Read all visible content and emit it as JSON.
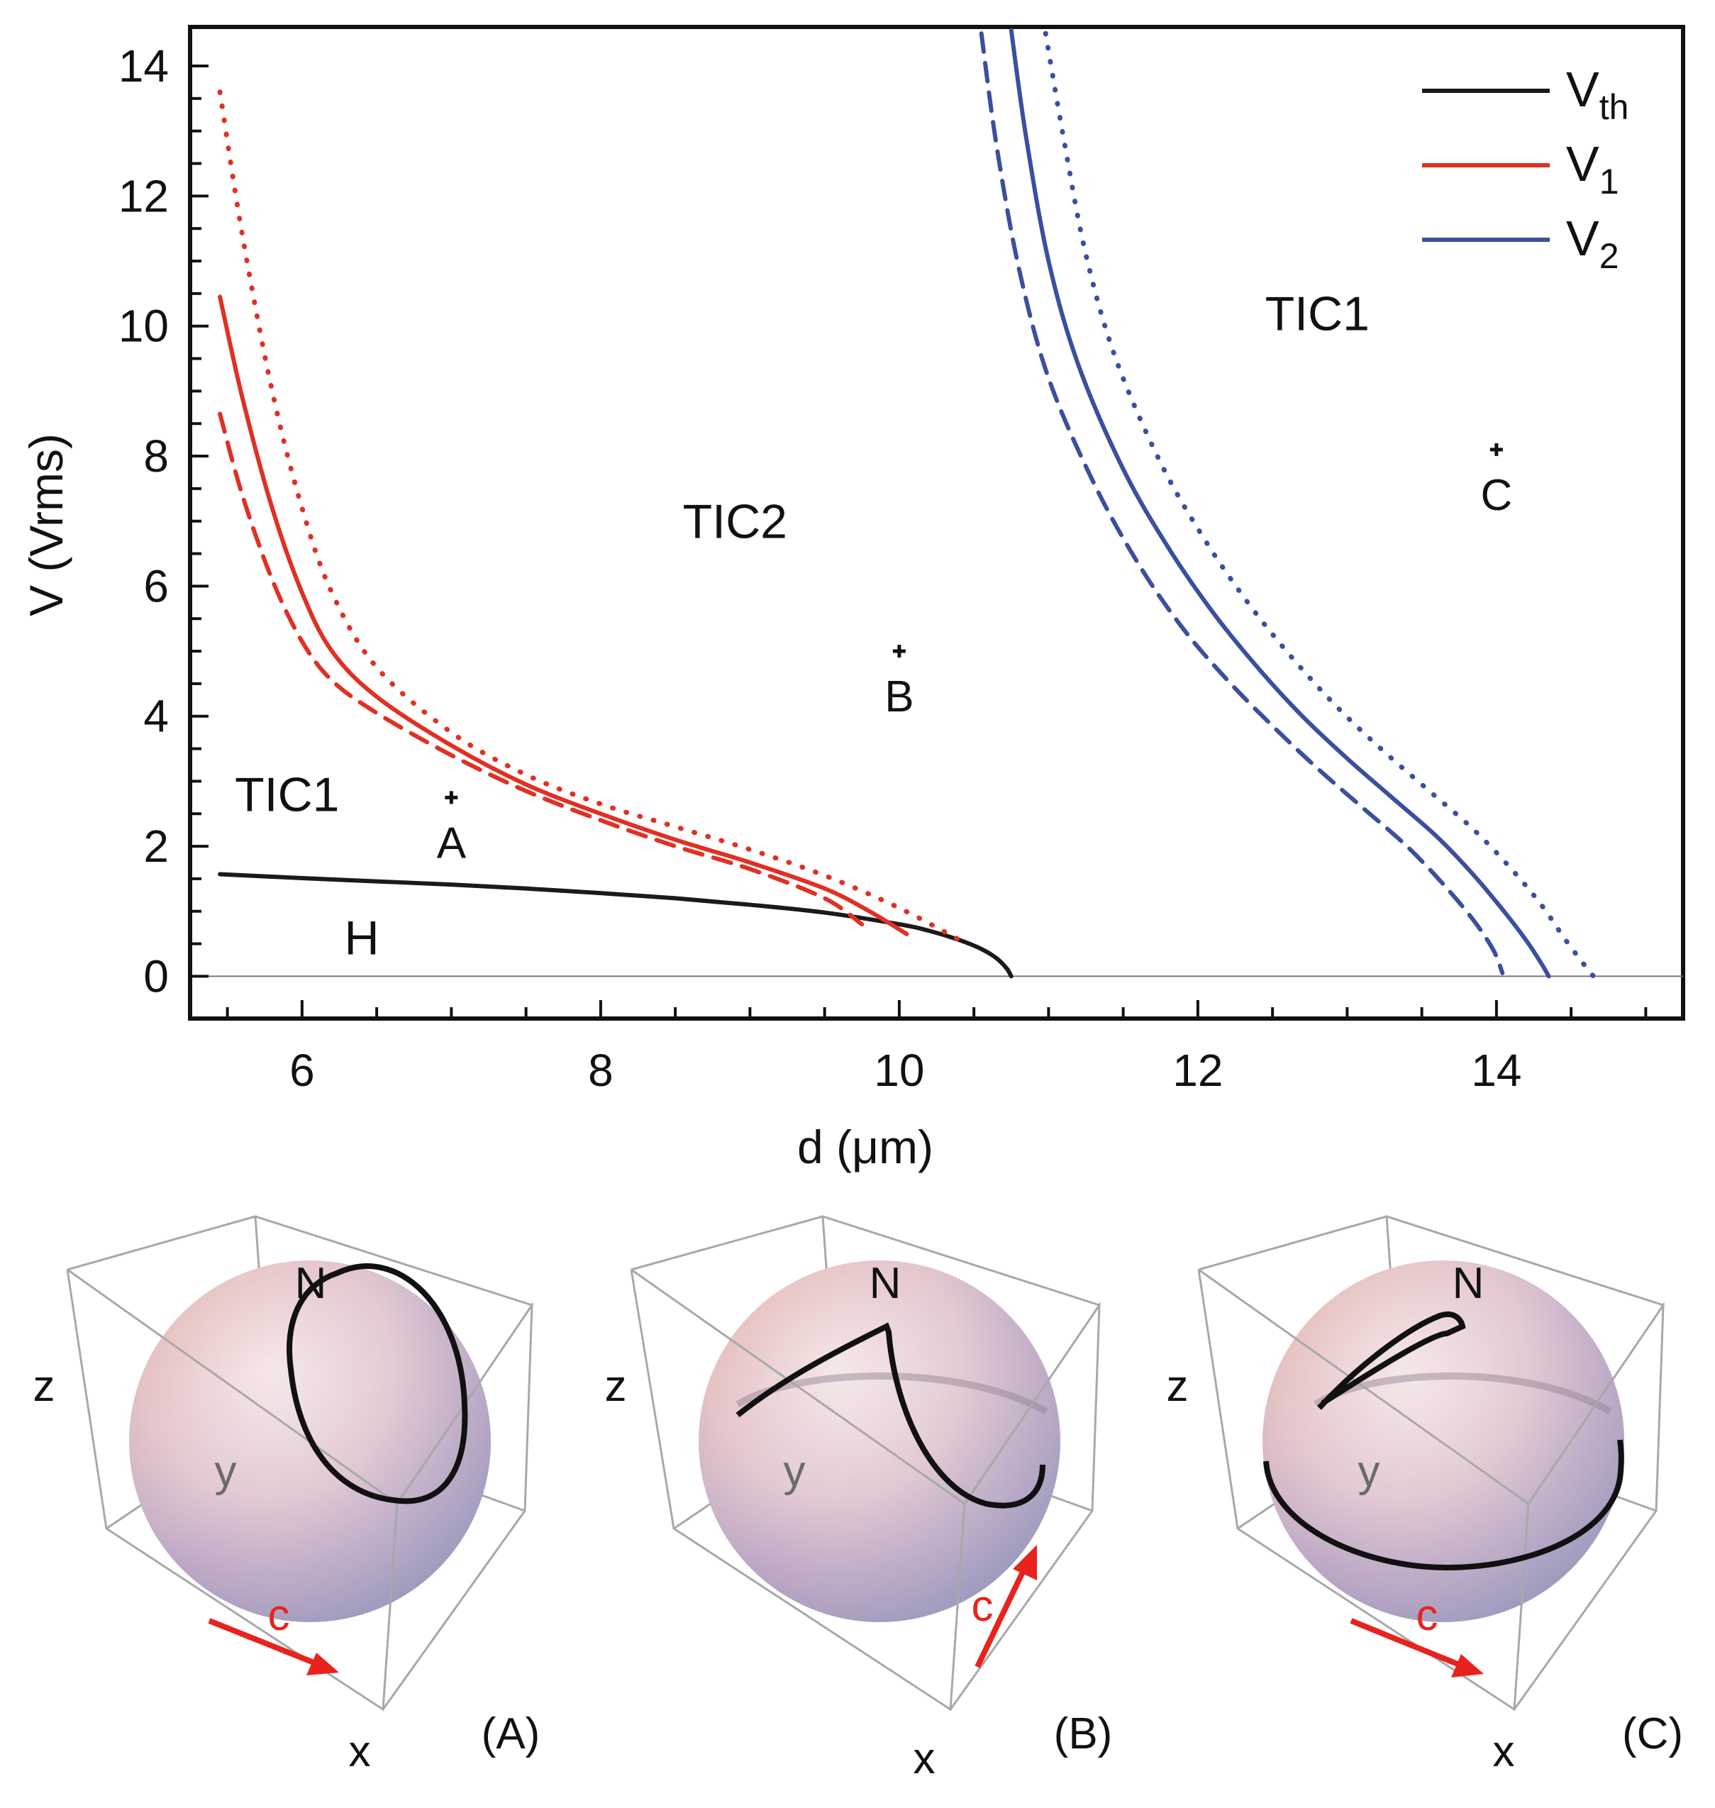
{
  "chart_data": [
    {
      "type": "line",
      "xlabel": "d (μm)",
      "ylabel": "V (Vrms)",
      "xlim": [
        5.25,
        15.25
      ],
      "ylim": [
        -0.65,
        14.6
      ],
      "xticks": [
        6,
        8,
        10,
        12,
        14
      ],
      "xtick_labels": [
        "6",
        "8",
        "10",
        "12",
        "14"
      ],
      "yticks": [
        0,
        2,
        4,
        6,
        8,
        10,
        12,
        14
      ],
      "ytick_labels": [
        "0",
        "2",
        "4",
        "6",
        "8",
        "10",
        "12",
        "14"
      ],
      "grid": false,
      "legend": {
        "position": "top-right",
        "entries": [
          {
            "main": "V",
            "sub": "th",
            "color": "#1a1a1a"
          },
          {
            "main": "V",
            "sub": "1",
            "color": "#e03024"
          },
          {
            "main": "V",
            "sub": "2",
            "color": "#3a4f9e"
          }
        ]
      },
      "series": [
        {
          "name": "Vth",
          "color": "#1a1a1a",
          "style": "solid",
          "x": [
            5.45,
            6,
            6.5,
            7,
            7.5,
            8,
            8.5,
            9,
            9.5,
            10,
            10.2,
            10.4,
            10.55,
            10.65,
            10.72,
            10.75
          ],
          "y": [
            1.57,
            1.51,
            1.46,
            1.41,
            1.35,
            1.28,
            1.2,
            1.1,
            0.98,
            0.8,
            0.7,
            0.56,
            0.42,
            0.28,
            0.12,
            0.0
          ]
        },
        {
          "name": "V1 (solid)",
          "color": "#e03024",
          "style": "solid",
          "x": [
            5.45,
            5.6,
            5.8,
            6.0,
            6.2,
            6.5,
            7.0,
            7.5,
            8.0,
            8.5,
            9.0,
            9.5,
            9.8,
            10.05
          ],
          "y": [
            10.45,
            8.9,
            7.2,
            5.9,
            5.0,
            4.3,
            3.55,
            2.95,
            2.5,
            2.1,
            1.75,
            1.35,
            1.0,
            0.65
          ]
        },
        {
          "name": "V1 (dashed)",
          "color": "#e03024",
          "style": "dashed",
          "x": [
            5.45,
            5.6,
            5.8,
            6.0,
            6.2,
            6.5,
            7.0,
            7.5,
            8.0,
            8.5,
            9.0,
            9.5,
            9.75
          ],
          "y": [
            8.65,
            7.4,
            6.1,
            5.15,
            4.55,
            4.05,
            3.4,
            2.85,
            2.4,
            2.0,
            1.65,
            1.2,
            0.8
          ]
        },
        {
          "name": "V1 (dotted)",
          "color": "#e03024",
          "style": "dotted",
          "x": [
            5.45,
            5.6,
            5.8,
            6.0,
            6.2,
            6.5,
            7.0,
            7.5,
            8.0,
            8.5,
            9.0,
            9.5,
            10.0,
            10.45
          ],
          "y": [
            13.6,
            11.4,
            9.0,
            7.2,
            5.9,
            4.75,
            3.75,
            3.1,
            2.65,
            2.3,
            1.95,
            1.55,
            1.05,
            0.5
          ]
        },
        {
          "name": "V2 (solid)",
          "color": "#3a4f9e",
          "style": "solid",
          "x": [
            10.75,
            10.85,
            11.0,
            11.2,
            11.5,
            11.8,
            12.1,
            12.4,
            12.7,
            13.0,
            13.3,
            13.6,
            13.85,
            14.05,
            14.2,
            14.3,
            14.35
          ],
          "y": [
            14.55,
            12.9,
            11.0,
            9.4,
            7.8,
            6.6,
            5.6,
            4.75,
            4.0,
            3.35,
            2.75,
            2.15,
            1.55,
            1.0,
            0.55,
            0.2,
            0.0
          ]
        },
        {
          "name": "V2 (dashed)",
          "color": "#3a4f9e",
          "style": "dashed",
          "x": [
            10.55,
            10.65,
            10.8,
            11.0,
            11.3,
            11.6,
            11.9,
            12.2,
            12.5,
            12.8,
            13.1,
            13.4,
            13.65,
            13.85,
            13.98,
            14.04
          ],
          "y": [
            14.5,
            12.8,
            10.9,
            9.2,
            7.6,
            6.35,
            5.35,
            4.55,
            3.85,
            3.2,
            2.6,
            2.0,
            1.4,
            0.85,
            0.4,
            0.05
          ]
        },
        {
          "name": "V2 (dotted)",
          "color": "#3a4f9e",
          "style": "dotted",
          "x": [
            10.98,
            11.1,
            11.25,
            11.45,
            11.75,
            12.05,
            12.35,
            12.65,
            12.95,
            13.25,
            13.55,
            13.85,
            14.1,
            14.3,
            14.45,
            14.58,
            14.65
          ],
          "y": [
            14.5,
            12.9,
            11.1,
            9.5,
            7.9,
            6.7,
            5.7,
            4.85,
            4.1,
            3.45,
            2.85,
            2.25,
            1.65,
            1.1,
            0.6,
            0.2,
            0.0
          ]
        }
      ],
      "annotations": [
        {
          "text": "TIC1",
          "x": 5.9,
          "y": 2.8,
          "kind": "region"
        },
        {
          "text": "TIC2",
          "x": 8.9,
          "y": 7.0,
          "kind": "region"
        },
        {
          "text": "TIC1",
          "x": 12.8,
          "y": 10.2,
          "kind": "region"
        },
        {
          "text": "H",
          "x": 6.4,
          "y": 0.6,
          "kind": "region"
        }
      ],
      "points": [
        {
          "label": "A",
          "x": 7.0,
          "y": 2.75
        },
        {
          "label": "B",
          "x": 10.0,
          "y": 5.0
        },
        {
          "label": "C",
          "x": 14.0,
          "y": 8.1
        }
      ]
    }
  ],
  "panels": [
    {
      "tag": "(A)",
      "axis_z": "z",
      "axis_y": "y",
      "axis_x": "x",
      "pole": "N",
      "arrow_label": "c"
    },
    {
      "tag": "(B)",
      "axis_z": "z",
      "axis_y": "y",
      "axis_x": "x",
      "pole": "N",
      "arrow_label": "c"
    },
    {
      "tag": "(C)",
      "axis_z": "z",
      "axis_y": "y",
      "axis_x": "x",
      "pole": "N",
      "arrow_label": "c"
    }
  ],
  "colors": {
    "axis": "#111111",
    "arrow": "#e8231e",
    "box": "#a8a8a8",
    "trajectory": "#111111"
  }
}
